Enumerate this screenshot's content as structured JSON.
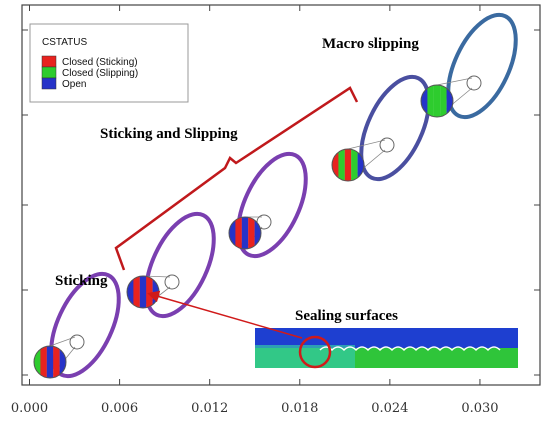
{
  "legend": {
    "title": "CSTATUS",
    "entries": [
      {
        "label": "Closed (Sticking)",
        "color": "#e8231f"
      },
      {
        "label": "Closed (Slipping)",
        "color": "#2ecc2e"
      },
      {
        "label": "Open",
        "color": "#2633c8"
      }
    ]
  },
  "annotations": {
    "sticking": "Sticking",
    "sticking_and_slipping": "Sticking and Slipping",
    "macro_slipping": "Macro slipping",
    "sealing_surfaces": "Sealing surfaces"
  },
  "axis": {
    "xlim": [
      -0.0005,
      0.034
    ],
    "xticks": [
      {
        "value": 0,
        "label": "0.000"
      },
      {
        "value": 0.006,
        "label": "0.006"
      },
      {
        "value": 0.012,
        "label": "0.012"
      },
      {
        "value": 0.018,
        "label": "0.018"
      },
      {
        "value": 0.024,
        "label": "0.024"
      },
      {
        "value": 0.03,
        "label": "0.030"
      }
    ]
  }
}
